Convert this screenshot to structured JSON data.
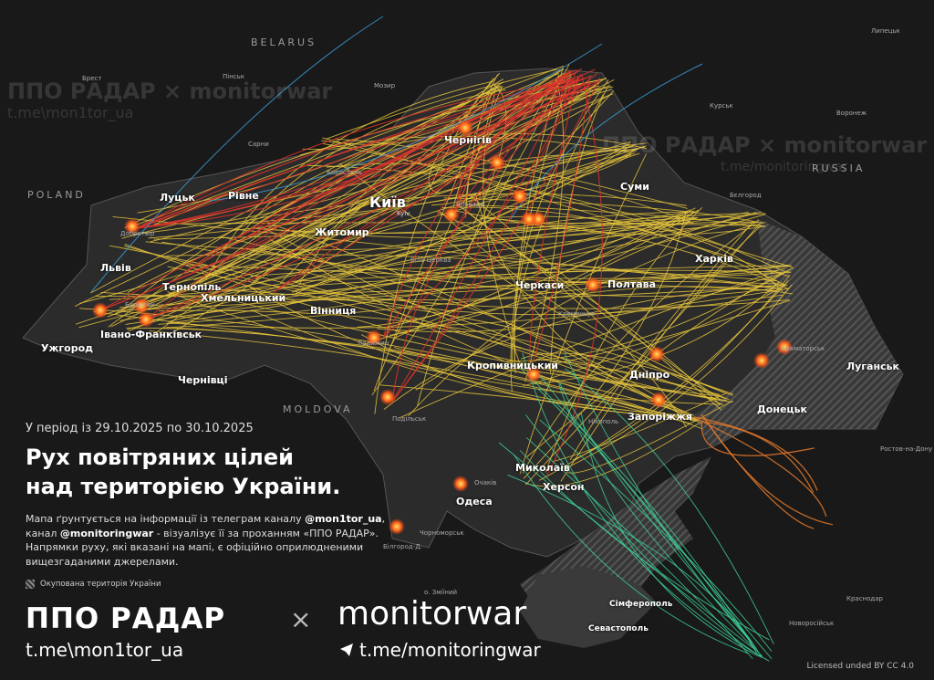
{
  "header": {
    "period": "У період із 29.10.2025 по 30.10.2025",
    "title_line1": "Рух повітряних цілей",
    "title_line2": "над територією України."
  },
  "description": {
    "part1": "Мапа ґрунтується на інформації із телеграм каналу ",
    "handle1": "@mon1tor_ua",
    "part2": ", канал ",
    "handle2": "@monitoringwar",
    "part3": " - візуалізує її за проханням «ППО РАДАР». Напрямки руху, які вказані на мапі, є офіційно оприлюдненими вищезгаданими джерелами."
  },
  "legend": {
    "occupied": "Окупована територія України"
  },
  "branding": {
    "ppo": "ППО РАДАР",
    "times": "×",
    "monitorwar": "monitorwar",
    "ppo_link": "t.me\\mon1tor_ua",
    "mw_link": "t.me/monitoringwar",
    "telegram_icon": "telegram-icon",
    "license": "Licensed unded BY CC 4.0"
  },
  "watermarks": {
    "w1": "ППО РАДАР × monitorwar",
    "w1_link": "t.me\\mon1tor_ua",
    "w2": "ППО РАДАР × monitorwar",
    "w2_link": "t.me/monitoringwar"
  },
  "countries": {
    "belarus": "BELARUS",
    "poland": "POLAND",
    "russia": "RUSSIA",
    "moldova": "MOLDOVA"
  },
  "cities": {
    "kyiv": "Київ",
    "kyiv_en": "Kyiv",
    "chernihiv": "Чернігів",
    "sumy": "Суми",
    "kharkiv": "Харків",
    "poltava": "Полтава",
    "cherkasy": "Черкаси",
    "zhytomyr": "Житомир",
    "rivne": "Рівне",
    "lutsk": "Луцьк",
    "lviv": "Львів",
    "ternopil": "Тернопіль",
    "khmelnytskyi": "Хмельницький",
    "vinnytsia": "Вінниця",
    "ivano_frankivsk": "Івано-Франківськ",
    "uzhhorod": "Ужгород",
    "chernivtsi": "Чернівці",
    "kropyvnytskyi": "Кропивницький",
    "dnipro": "Дніпро",
    "zaporizhzhia": "Запоріжжя",
    "donetsk": "Донецьк",
    "luhansk": "Луганськ",
    "mykolaiv": "Миколаїв",
    "kherson": "Херсон",
    "odesa": "Одеса",
    "simferopol": "Сімферополь",
    "sevastopol": "Севастополь"
  },
  "towns": {
    "kursk": "Курськ",
    "voronezh": "Воронеж",
    "belgorod": "Бєлгород",
    "rostov": "Ростов-на-Дону",
    "krasnodar": "Краснодар",
    "novorossiysk": "Новоросійськ",
    "brest": "Брест",
    "pinsk": "Пінськ",
    "mozyr": "Мозир",
    "lipetsk": "Липецьк",
    "dobrotvir": "Добротвір",
    "burshtyn": "Бурштин",
    "ladyzhyn": "Ладижин",
    "sarny": "Сарни",
    "korosten": "Коростень",
    "brovary": "Бровари",
    "bila_tserkva": "Біла Церква",
    "kremenchuk": "Кременчук",
    "chornomorsk": "Чорноморськ",
    "bilhorod": "Білгород-Д.",
    "zmiinyi": "о. Зміїний",
    "podilsk": "Подільськ",
    "ochakiv": "Очаків",
    "nikopol": "Нікополь",
    "kramatorsk": "Краматорськ"
  },
  "colors": {
    "background": "#191919",
    "ukraine": "#2b2b2b",
    "shahed": "#e6c43c",
    "missile": "#d8332b",
    "recon": "#3fd39a",
    "ballistic": "#3b9fd8",
    "kab": "#e0782a",
    "explosion": "#ff7a1a"
  }
}
